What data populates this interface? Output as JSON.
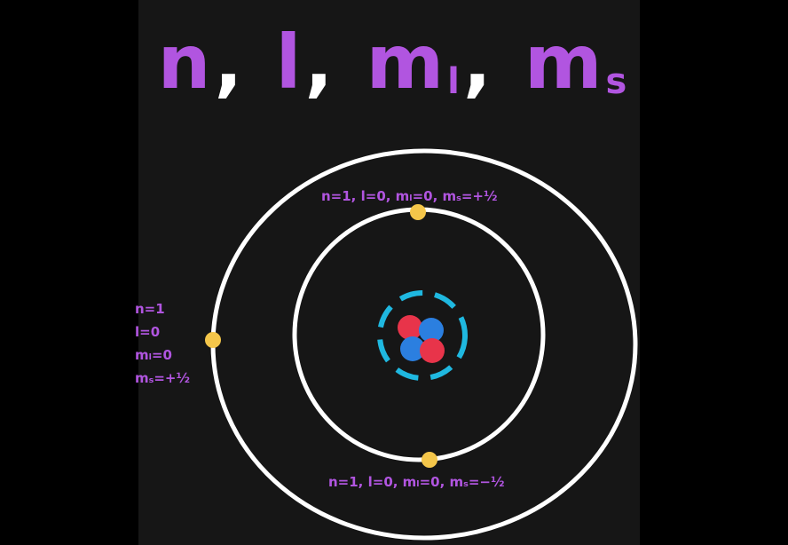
{
  "title": {
    "n": "n",
    "l": "l",
    "ml_base": "m",
    "ml_sub": "l",
    "ms_base": "m",
    "ms_sub": "s",
    "comma": ","
  },
  "labels": {
    "top": "n=1, l=0, mₗ=0, mₛ=+½",
    "bottom": "n=1, l=0, mₗ=0, mₛ=−½",
    "side": [
      "n=1",
      "l=0",
      "mₗ=0",
      "mₛ=+½"
    ]
  },
  "colors": {
    "background": "#161616",
    "title": "#b155e0",
    "orbit": "#ffffff",
    "electron": "#f4c64a",
    "proton": "#e8344a",
    "neutron": "#2b7fe0",
    "nucleus_ring": "#1fb8e0"
  }
}
